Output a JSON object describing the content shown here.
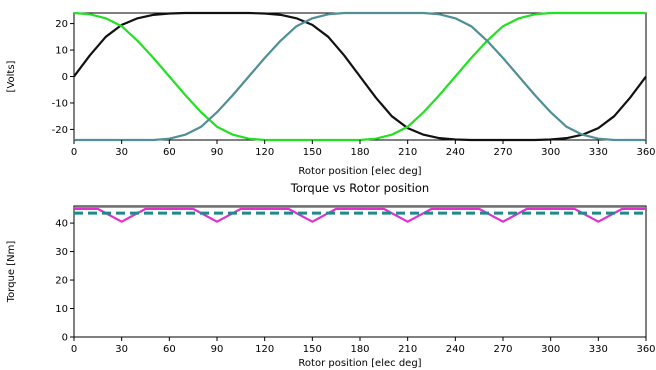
{
  "chart_data": [
    {
      "type": "line",
      "title": "",
      "xlabel": "Rotor position [elec deg]",
      "ylabel": "[Volts]",
      "xlim": [
        0,
        360
      ],
      "ylim": [
        -24,
        24
      ],
      "xticks": [
        0,
        30,
        60,
        90,
        120,
        150,
        180,
        210,
        240,
        270,
        300,
        330,
        360
      ],
      "yticks": [
        -20,
        -10,
        0,
        10,
        20
      ],
      "grid": false,
      "series": [
        {
          "color": "#111111",
          "x": [
            0,
            10,
            20,
            30,
            40,
            50,
            60,
            70,
            80,
            90,
            100,
            110,
            120,
            130,
            140,
            150,
            160,
            170,
            180,
            190,
            200,
            210,
            220,
            230,
            240,
            250,
            260,
            270,
            280,
            290,
            300,
            310,
            320,
            330,
            340,
            350,
            360
          ],
          "y": [
            0,
            8,
            15,
            19.5,
            22,
            23.3,
            23.8,
            24,
            24,
            24,
            24,
            24,
            23.8,
            23.3,
            22,
            19.5,
            15,
            8,
            0,
            -8,
            -15,
            -19.5,
            -22,
            -23.3,
            -23.8,
            -24,
            -24,
            -24,
            -24,
            -24,
            -23.8,
            -23.3,
            -22,
            -19.5,
            -15,
            -8,
            0
          ]
        },
        {
          "color": "#22e022",
          "x": [
            0,
            10,
            20,
            30,
            40,
            50,
            60,
            70,
            80,
            90,
            100,
            110,
            120,
            130,
            140,
            150,
            160,
            170,
            180,
            190,
            200,
            210,
            220,
            230,
            240,
            250,
            260,
            270,
            280,
            290,
            300,
            310,
            320,
            330,
            340,
            350,
            360
          ],
          "y": [
            24,
            23.5,
            22,
            19,
            13.5,
            7,
            0,
            -7,
            -13.5,
            -19,
            -22,
            -23.5,
            -24,
            -24,
            -24,
            -24,
            -24,
            -24,
            -24,
            -23.5,
            -22,
            -19,
            -13.5,
            -7,
            0,
            7,
            13.5,
            19,
            22,
            23.5,
            24,
            24,
            24,
            24,
            24,
            24,
            24
          ]
        },
        {
          "color": "#4f8f95",
          "x": [
            0,
            10,
            20,
            30,
            40,
            50,
            60,
            70,
            80,
            90,
            100,
            110,
            120,
            130,
            140,
            150,
            160,
            170,
            180,
            190,
            200,
            210,
            220,
            230,
            240,
            250,
            260,
            270,
            280,
            290,
            300,
            310,
            320,
            330,
            340,
            350,
            360
          ],
          "y": [
            -24,
            -24,
            -24,
            -24,
            -24,
            -24,
            -23.5,
            -22,
            -19,
            -13.5,
            -7,
            0,
            7,
            13.5,
            19,
            22,
            23.5,
            24,
            24,
            24,
            24,
            24,
            24,
            23.5,
            22,
            19,
            13.5,
            7,
            0,
            -7,
            -13.5,
            -19,
            -22,
            -23.5,
            -24,
            -24,
            -24
          ]
        }
      ]
    },
    {
      "type": "line",
      "title": "Torque vs Rotor position",
      "xlabel": "Rotor position [elec deg]",
      "ylabel": "Torque [Nm]",
      "xlim": [
        0,
        360
      ],
      "ylim": [
        0,
        46
      ],
      "xticks": [
        0,
        30,
        60,
        90,
        120,
        150,
        180,
        210,
        240,
        270,
        300,
        330,
        360
      ],
      "yticks": [
        0,
        10,
        20,
        30,
        40
      ],
      "grid": false,
      "series": [
        {
          "color": "#888888",
          "x": [
            0,
            360
          ],
          "y": [
            45.5,
            45.5
          ]
        },
        {
          "color": "#e030d0",
          "x": [
            0,
            15,
            30,
            45,
            60,
            75,
            90,
            105,
            120,
            135,
            150,
            165,
            180,
            195,
            210,
            225,
            240,
            255,
            270,
            285,
            300,
            315,
            330,
            345,
            360
          ],
          "y": [
            45,
            45,
            40.5,
            45,
            45,
            45,
            40.5,
            45,
            45,
            45,
            40.5,
            45,
            45,
            45,
            40.5,
            45,
            45,
            45,
            40.5,
            45,
            45,
            45,
            40.5,
            45,
            45
          ]
        },
        {
          "color": "#1f8a8a",
          "dashed": true,
          "x": [
            0,
            360
          ],
          "y": [
            43.5,
            43.5
          ]
        }
      ]
    }
  ]
}
